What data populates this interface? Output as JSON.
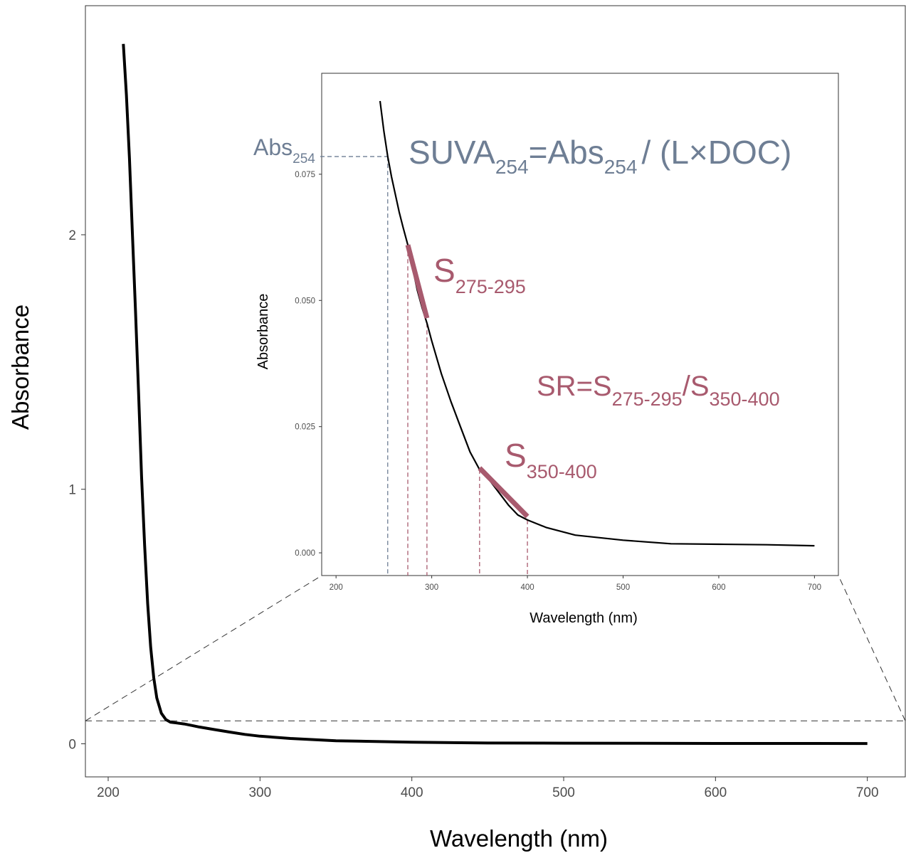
{
  "chart_data": [
    {
      "type": "line",
      "panel": "main",
      "xlabel": "Wavelength (nm)",
      "ylabel": "Absorbance",
      "xlim": [
        185,
        725
      ],
      "ylim": [
        -0.13,
        2.9
      ],
      "x_ticks": [
        200,
        300,
        400,
        500,
        600,
        700
      ],
      "y_ticks": [
        0,
        1,
        2
      ],
      "x_tick_labels": [
        "200",
        "300",
        "400",
        "500",
        "600",
        "700"
      ],
      "y_tick_labels": [
        "0",
        "1",
        "2"
      ],
      "zoom_region": {
        "xmin": 185,
        "xmax": 725,
        "ymin": -0.13,
        "ymax": 0.09
      },
      "series": [
        {
          "color": "#000000",
          "x": [
            210,
            212,
            214,
            216,
            218,
            220,
            222,
            224,
            226,
            228,
            230,
            232,
            235,
            238,
            241,
            245,
            250,
            255,
            260,
            270,
            280,
            290,
            300,
            320,
            350,
            400,
            450,
            500,
            550,
            600,
            650,
            700
          ],
          "y": [
            2.75,
            2.55,
            2.3,
            2.0,
            1.7,
            1.38,
            1.05,
            0.78,
            0.55,
            0.38,
            0.26,
            0.18,
            0.12,
            0.095,
            0.085,
            0.082,
            0.078,
            0.072,
            0.066,
            0.056,
            0.046,
            0.037,
            0.03,
            0.021,
            0.012,
            0.006,
            0.003,
            0.0025,
            0.002,
            0.0015,
            0.0013,
            0.0012
          ]
        }
      ]
    },
    {
      "type": "line",
      "panel": "inset",
      "xlabel": "Wavelength (nm)",
      "ylabel": "Absorbance",
      "xlim": [
        185,
        725
      ],
      "ylim": [
        -0.0045,
        0.095
      ],
      "x_ticks": [
        200,
        300,
        400,
        500,
        600,
        700
      ],
      "y_ticks": [
        0,
        0.025,
        0.05,
        0.075
      ],
      "x_tick_labels": [
        "200",
        "300",
        "400",
        "500",
        "600",
        "700"
      ],
      "y_tick_labels": [
        "0.000",
        "0.025",
        "0.050",
        "0.075"
      ],
      "series": [
        {
          "color": "#000000",
          "x": [
            246,
            250,
            254,
            258,
            262,
            266,
            270,
            275,
            280,
            285,
            290,
            295,
            300,
            310,
            320,
            330,
            340,
            350,
            360,
            370,
            380,
            390,
            400,
            420,
            450,
            500,
            550,
            600,
            650,
            700
          ],
          "y": [
            0.0895,
            0.0835,
            0.0785,
            0.0745,
            0.071,
            0.0675,
            0.0645,
            0.061,
            0.0565,
            0.052,
            0.0485,
            0.0455,
            0.042,
            0.0355,
            0.03,
            0.025,
            0.02,
            0.0165,
            0.0145,
            0.012,
            0.0095,
            0.0075,
            0.0065,
            0.005,
            0.0035,
            0.0025,
            0.0018,
            0.0017,
            0.0016,
            0.0014
          ]
        }
      ],
      "reference_lines": {
        "abs254": {
          "x": 254,
          "y": 0.0785,
          "color": "#6e7e94"
        },
        "verticals": [
          275,
          295,
          350,
          400
        ],
        "vertical_color": "#a85a6e"
      },
      "segments": [
        {
          "label": "S275-295",
          "x0": 275,
          "y0": 0.061,
          "x1": 295,
          "y1": 0.0465,
          "color": "#a85a6e"
        },
        {
          "label": "S350-400",
          "x0": 350,
          "y0": 0.0168,
          "x1": 400,
          "y1": 0.0072,
          "color": "#a85a6e"
        }
      ]
    }
  ],
  "annotations": {
    "abs_label": {
      "base": "Abs",
      "sub": "254"
    },
    "suva_formula": {
      "p1": "SUVA",
      "p1_sub": "254",
      "p2": "=Abs",
      "p2_sub": "254",
      "p3": "/ (L×DOC)"
    },
    "s1_label": {
      "base": "S",
      "sub": "275-295"
    },
    "s2_label": {
      "base": "S",
      "sub": "350-400"
    },
    "sr_formula": {
      "p1": "SR=S",
      "p1_sub": "275-295",
      "p2": "/S",
      "p2_sub": "350-400"
    }
  },
  "colors": {
    "annotation_blue": "#6e7e94",
    "annotation_red": "#a85a6e",
    "line": "#000000"
  }
}
